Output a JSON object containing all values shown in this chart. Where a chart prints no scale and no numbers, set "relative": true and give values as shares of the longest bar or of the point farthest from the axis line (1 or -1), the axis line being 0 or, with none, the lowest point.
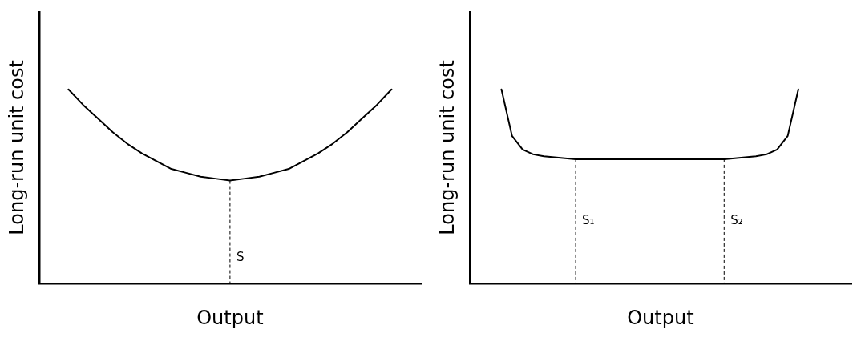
{
  "chart_data": [
    {
      "type": "line",
      "relative": true,
      "xlabel": "Output",
      "ylabel": "Long-run unit cost",
      "grid": false,
      "legend": false,
      "marker": "none",
      "categories": [
        null,
        null,
        null,
        null,
        null,
        null,
        null,
        null,
        null,
        null,
        null,
        null,
        null,
        null,
        null,
        null,
        null,
        null,
        null,
        null,
        null,
        null,
        null,
        null,
        null,
        null,
        null
      ],
      "series": [
        {
          "color": "#000000",
          "values": [
            null,
            null,
            1,
            0.92,
            0.85,
            0.78,
            0.72,
            0.67,
            0.63,
            0.59,
            0.57,
            0.55,
            0.54,
            0.53,
            0.54,
            0.55,
            0.57,
            0.59,
            0.63,
            0.67,
            0.72,
            0.78,
            0.85,
            0.92,
            1,
            null,
            null
          ]
        }
      ],
      "annotations": [
        "S"
      ]
    },
    {
      "type": "line",
      "relative": true,
      "xlabel": "Output",
      "ylabel": "Long-run unit cost",
      "grid": false,
      "legend": false,
      "marker": "none",
      "categories": [
        null,
        null,
        null,
        null,
        null,
        null,
        null,
        null,
        null,
        null,
        null,
        null,
        null,
        null,
        null,
        null,
        null,
        null,
        null,
        null,
        null,
        null,
        null,
        null,
        null,
        null,
        null,
        null,
        null,
        null,
        null,
        null,
        null,
        null,
        null,
        null,
        null
      ],
      "series": [
        {
          "color": "#000000",
          "values": [
            null,
            null,
            null,
            1,
            0.76,
            0.69,
            0.665,
            0.655,
            0.65,
            0.645,
            0.64,
            0.64,
            0.64,
            0.64,
            0.64,
            0.64,
            0.64,
            0.64,
            0.64,
            0.64,
            0.64,
            0.64,
            0.64,
            0.64,
            0.64,
            0.645,
            0.65,
            0.655,
            0.665,
            0.69,
            0.76,
            1,
            null,
            null,
            null,
            null,
            null
          ]
        }
      ],
      "annotations": [
        "S₁",
        "S₂"
      ]
    }
  ]
}
